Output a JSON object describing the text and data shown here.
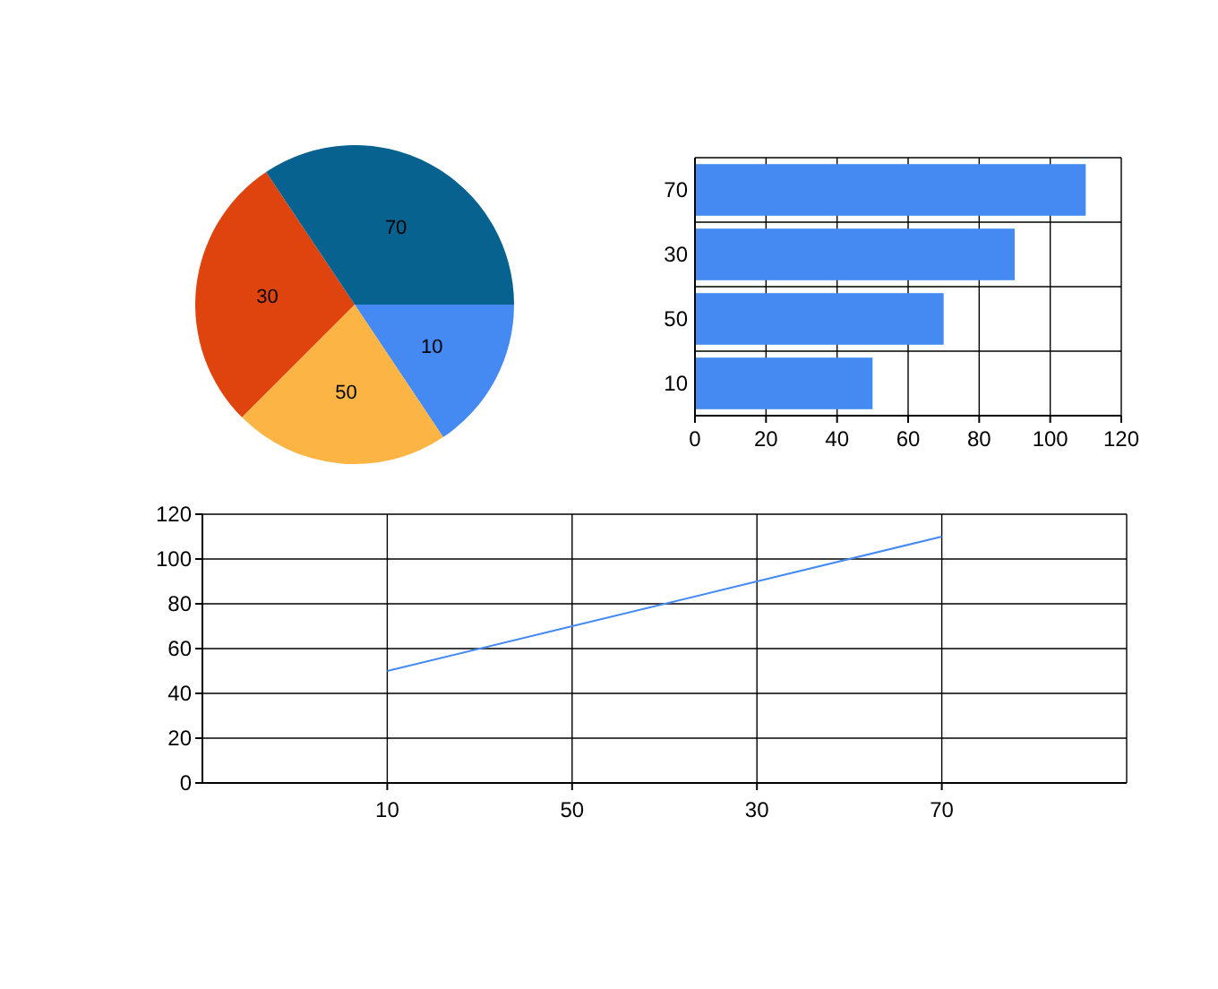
{
  "chart_data": [
    {
      "type": "pie",
      "categories": [
        "10",
        "50",
        "30",
        "70"
      ],
      "values": [
        15.625,
        21.875,
        28.125,
        34.375
      ],
      "colors": [
        "#448af2",
        "#fcb444",
        "#e0440e",
        "#07628f"
      ]
    },
    {
      "type": "bar",
      "orientation": "horizontal",
      "categories": [
        "70",
        "30",
        "50",
        "10"
      ],
      "values": [
        110,
        90,
        70,
        50
      ],
      "color": "#448af2",
      "xlim": [
        0,
        120
      ],
      "xticks": [
        0,
        20,
        40,
        60,
        80,
        100,
        120
      ],
      "grid": true
    },
    {
      "type": "line",
      "categories": [
        "10",
        "50",
        "30",
        "70"
      ],
      "values": [
        50,
        70,
        90,
        110
      ],
      "color": "#448af2",
      "ylim": [
        0,
        120
      ],
      "yticks": [
        0,
        20,
        40,
        60,
        80,
        100,
        120
      ],
      "grid": true
    }
  ]
}
